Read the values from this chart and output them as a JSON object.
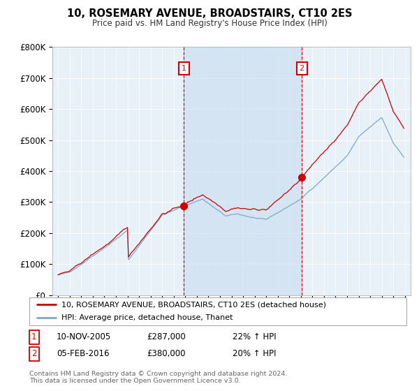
{
  "title": "10, ROSEMARY AVENUE, BROADSTAIRS, CT10 2ES",
  "subtitle": "Price paid vs. HM Land Registry's House Price Index (HPI)",
  "background_color": "#ffffff",
  "plot_bg_color": "#e8f0f8",
  "grid_color": "#ffffff",
  "red_line_color": "#cc0000",
  "blue_line_color": "#7aaacc",
  "shade_color": "#cce0f0",
  "legend_red": "10, ROSEMARY AVENUE, BROADSTAIRS, CT10 2ES (detached house)",
  "legend_blue": "HPI: Average price, detached house, Thanet",
  "footer": "Contains HM Land Registry data © Crown copyright and database right 2024.\nThis data is licensed under the Open Government Licence v3.0.",
  "ylim": [
    0,
    800000
  ],
  "yticks": [
    0,
    100000,
    200000,
    300000,
    400000,
    500000,
    600000,
    700000,
    800000
  ],
  "ytick_labels": [
    "£0",
    "£100K",
    "£200K",
    "£300K",
    "£400K",
    "£500K",
    "£600K",
    "£700K",
    "£800K"
  ],
  "sale1_year": 2005.87,
  "sale1_price": 287000,
  "sale1_label": "1",
  "sale1_date": "10-NOV-2005",
  "sale1_pct": "22% ↑ HPI",
  "sale2_year": 2016.08,
  "sale2_price": 380000,
  "sale2_label": "2",
  "sale2_date": "05-FEB-2016",
  "sale2_pct": "20% ↑ HPI",
  "xlim_left": 1994.5,
  "xlim_right": 2025.5
}
